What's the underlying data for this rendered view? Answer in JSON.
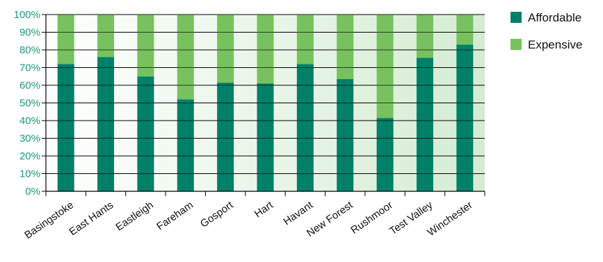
{
  "chart_data": {
    "type": "bar",
    "stacked": true,
    "categories": [
      "Basingstoke",
      "East Hants",
      "Eastleigh",
      "Fareham",
      "Gosport",
      "Hart",
      "Havant",
      "New Forest",
      "Rushmoor",
      "Test Valley",
      "Winchester"
    ],
    "series": [
      {
        "name": "Affordable",
        "color": "#008068",
        "values": [
          72,
          76,
          65,
          52,
          61.5,
          61,
          72,
          63.5,
          41.5,
          75.5,
          83
        ]
      },
      {
        "name": "Expensive",
        "color": "#77c25e",
        "values": [
          28,
          24,
          35,
          48,
          38.5,
          39,
          28,
          36.5,
          58.5,
          24.5,
          17
        ]
      }
    ],
    "yticks": [
      "0%",
      "10%",
      "20%",
      "30%",
      "40%",
      "50%",
      "60%",
      "70%",
      "80%",
      "90%",
      "100%"
    ],
    "ylim": [
      0,
      100
    ],
    "grid": true,
    "legend_position": "top-right",
    "background_gradient": [
      "#ffffff",
      "#d4ecd2"
    ],
    "ytick_color": "#1a9a7c"
  }
}
